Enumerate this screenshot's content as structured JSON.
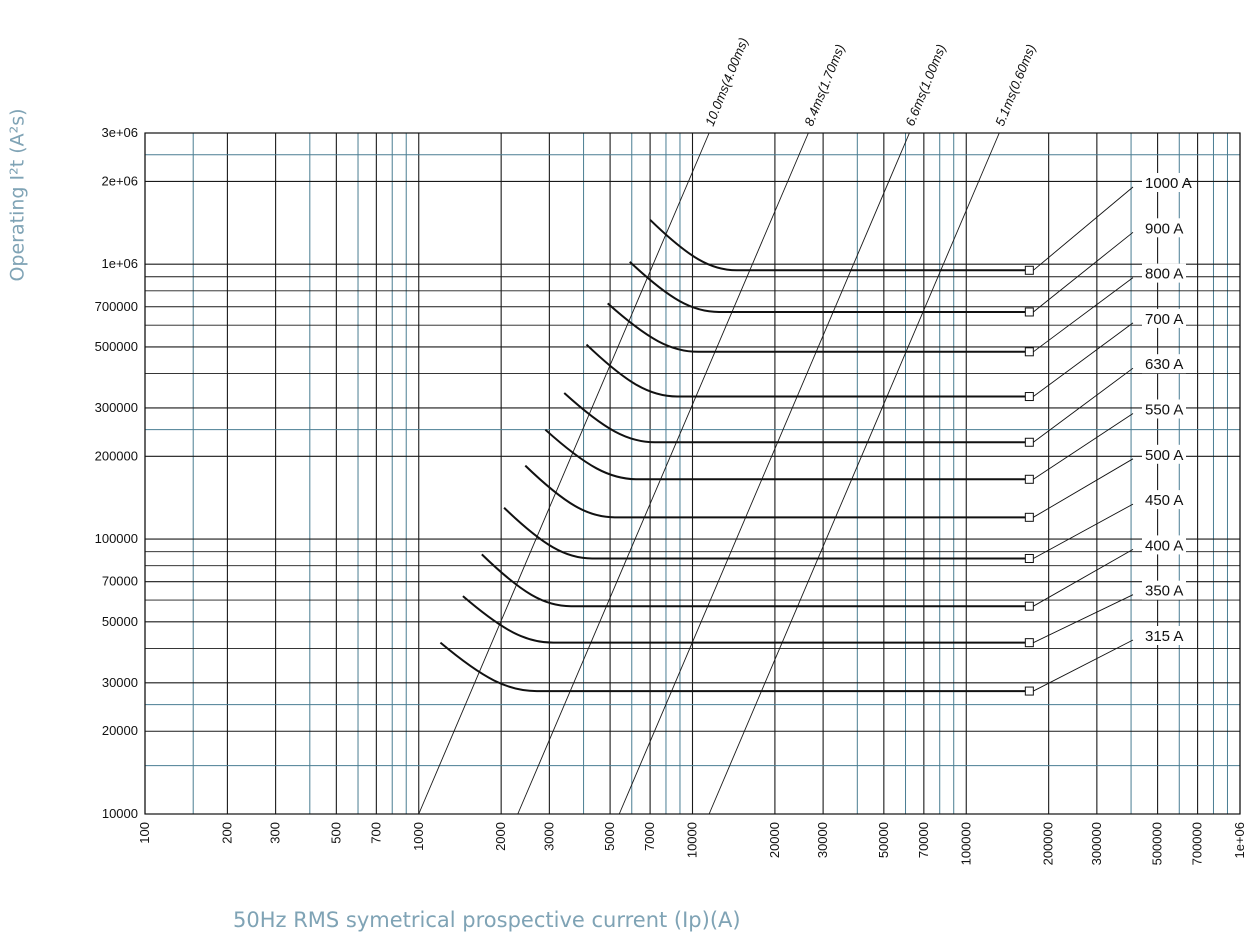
{
  "chart_data": {
    "type": "line",
    "xscale": "log",
    "yscale": "log",
    "xlim": [
      100,
      1000000
    ],
    "ylim": [
      10000,
      3000000
    ],
    "grid": true,
    "xlabel": "50Hz RMS symetrical prospective current (Ip)(A)",
    "ylabel": "Operating I²t (A²s)",
    "x_ticks": [
      {
        "value": 100,
        "label": "100"
      },
      {
        "value": 200,
        "label": "200"
      },
      {
        "value": 300,
        "label": "300"
      },
      {
        "value": 500,
        "label": "500"
      },
      {
        "value": 700,
        "label": "700"
      },
      {
        "value": 1000,
        "label": "1000"
      },
      {
        "value": 2000,
        "label": "2000"
      },
      {
        "value": 3000,
        "label": "3000"
      },
      {
        "value": 5000,
        "label": "5000"
      },
      {
        "value": 7000,
        "label": "7000"
      },
      {
        "value": 10000,
        "label": "10000"
      },
      {
        "value": 20000,
        "label": "20000"
      },
      {
        "value": 30000,
        "label": "30000"
      },
      {
        "value": 50000,
        "label": "50000"
      },
      {
        "value": 70000,
        "label": "70000"
      },
      {
        "value": 100000,
        "label": "100000"
      },
      {
        "value": 200000,
        "label": "200000"
      },
      {
        "value": 300000,
        "label": "300000"
      },
      {
        "value": 500000,
        "label": "500000"
      },
      {
        "value": 700000,
        "label": "700000"
      },
      {
        "value": 1000000,
        "label": "1e+06"
      }
    ],
    "y_ticks": [
      {
        "value": 10000,
        "label": "10000"
      },
      {
        "value": 20000,
        "label": "20000"
      },
      {
        "value": 30000,
        "label": "30000"
      },
      {
        "value": 50000,
        "label": "50000"
      },
      {
        "value": 70000,
        "label": "70000"
      },
      {
        "value": 100000,
        "label": "100000"
      },
      {
        "value": 200000,
        "label": "200000"
      },
      {
        "value": 300000,
        "label": "300000"
      },
      {
        "value": 500000,
        "label": "500000"
      },
      {
        "value": 700000,
        "label": "700000"
      },
      {
        "value": 1000000,
        "label": "1e+06"
      },
      {
        "value": 2000000,
        "label": "2e+06"
      },
      {
        "value": 3000000,
        "label": "3e+06"
      }
    ],
    "series": [
      {
        "name": "315 A",
        "start_x": 1200,
        "start_y": 42000,
        "knee_x": 2700,
        "plateau_y": 28000
      },
      {
        "name": "350 A",
        "start_x": 1450,
        "start_y": 62000,
        "knee_x": 3100,
        "plateau_y": 42000
      },
      {
        "name": "400 A",
        "start_x": 1700,
        "start_y": 88000,
        "knee_x": 3600,
        "plateau_y": 57000
      },
      {
        "name": "450 A",
        "start_x": 2050,
        "start_y": 130000,
        "knee_x": 4300,
        "plateau_y": 85000
      },
      {
        "name": "500 A",
        "start_x": 2450,
        "start_y": 185000,
        "knee_x": 5200,
        "plateau_y": 120000
      },
      {
        "name": "550 A",
        "start_x": 2900,
        "start_y": 250000,
        "knee_x": 6300,
        "plateau_y": 165000
      },
      {
        "name": "630 A",
        "start_x": 3400,
        "start_y": 340000,
        "knee_x": 7300,
        "plateau_y": 225000
      },
      {
        "name": "700 A",
        "start_x": 4100,
        "start_y": 510000,
        "knee_x": 8800,
        "plateau_y": 330000
      },
      {
        "name": "800 A",
        "start_x": 4900,
        "start_y": 720000,
        "knee_x": 10500,
        "plateau_y": 480000
      },
      {
        "name": "900 A",
        "start_x": 5900,
        "start_y": 1020000,
        "knee_x": 12500,
        "plateau_y": 670000
      },
      {
        "name": "1000 A",
        "start_x": 7000,
        "start_y": 1450000,
        "knee_x": 14500,
        "plateau_y": 950000
      }
    ],
    "curve_end_x": 170000,
    "time_lines": [
      {
        "label": "10.0ms(4.00ms)",
        "x_bottom": 1000,
        "x_top": 11500
      },
      {
        "label": "8.4ms(1.70ms)",
        "x_bottom": 2300,
        "x_top": 26500
      },
      {
        "label": "6.6ms(1.00ms)",
        "x_bottom": 5400,
        "x_top": 62000
      },
      {
        "label": "5.1ms(0.60ms)",
        "x_bottom": 11500,
        "x_top": 132000
      }
    ]
  }
}
